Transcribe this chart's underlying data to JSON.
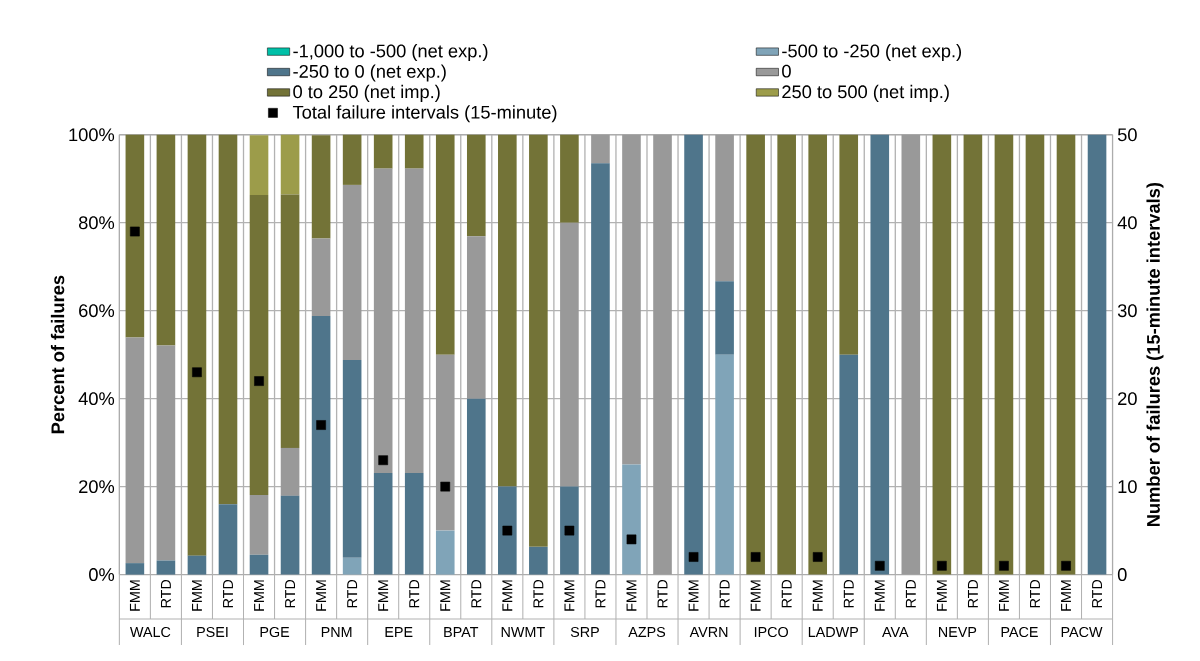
{
  "chart_data": {
    "type": "bar",
    "stacked": true,
    "grid": true,
    "legend": "top",
    "ylabel": "Percent of failures",
    "y2label": "Number of failures (15-minute intervals)",
    "categories": [
      "FMM",
      "RTD",
      "FMM",
      "RTD",
      "FMM",
      "RTD",
      "FMM",
      "RTD",
      "FMM",
      "RTD",
      "FMM",
      "RTD",
      "FMM",
      "RTD",
      "FMM",
      "RTD",
      "FMM",
      "RTD",
      "FMM",
      "RTD",
      "FMM",
      "RTD",
      "FMM",
      "RTD",
      "FMM",
      "RTD",
      "FMM",
      "RTD",
      "FMM",
      "RTD",
      "FMM",
      "RTD"
    ],
    "annotations": [
      "WALC",
      "PSEI",
      "PGE",
      "PNM",
      "EPE",
      "BPAT",
      "NWMT",
      "SRP",
      "AZPS",
      "AVRN",
      "IPCO",
      "LADWP",
      "AVA",
      "NEVP",
      "PACE",
      "PACW"
    ],
    "ylim": [
      0,
      100
    ],
    "yticks": [
      {
        "value": 0,
        "label": "0%"
      },
      {
        "value": 20,
        "label": "20%"
      },
      {
        "value": 40,
        "label": "40%"
      },
      {
        "value": 60,
        "label": "60%"
      },
      {
        "value": 80,
        "label": "80%"
      },
      {
        "value": 100,
        "label": "100%"
      }
    ],
    "y2lim": [
      0,
      50
    ],
    "y2ticks": [
      0,
      10,
      20,
      30,
      40,
      50
    ],
    "series": [
      {
        "name": "-1,000 to -500 (net exp.)",
        "color": "#00c0a8",
        "values": [
          0,
          0,
          0,
          0,
          0,
          0,
          0,
          0,
          0,
          0,
          0,
          0,
          0,
          0,
          0,
          0,
          0,
          0,
          0,
          0,
          0,
          0,
          0,
          0,
          0,
          0,
          0,
          0,
          0,
          0,
          0,
          0
        ]
      },
      {
        "name": "-500 to -250 (net exp.)",
        "color": "#80a4b8",
        "values": [
          0,
          0,
          0,
          0,
          0,
          0,
          0,
          3.8,
          0,
          0,
          10,
          0,
          0,
          0,
          0,
          0,
          25,
          0,
          0,
          50,
          0,
          0,
          0,
          0,
          0,
          0,
          0,
          0,
          0,
          0,
          0,
          0
        ]
      },
      {
        "name": "-250 to 0 (net exp.)",
        "color": "#4f758b",
        "values": [
          2.6,
          3.2,
          4.3,
          16,
          4.5,
          17.9,
          58.8,
          45,
          23.1,
          23.1,
          0,
          40,
          20,
          6.3,
          20,
          93.5,
          0,
          0,
          100,
          16.7,
          0,
          0,
          0,
          50,
          100,
          0,
          0,
          0,
          0,
          0,
          0,
          100
        ]
      },
      {
        "name": "0",
        "color": "#999999",
        "values": [
          51.3,
          48.9,
          0,
          0,
          13.6,
          10.9,
          17.6,
          39.8,
          69.2,
          69.2,
          40,
          36.9,
          0,
          0,
          60,
          6.5,
          75,
          100,
          0,
          33.3,
          0,
          0,
          0,
          0,
          0,
          100,
          0,
          0,
          0,
          0,
          0,
          0
        ]
      },
      {
        "name": "0 to 250 (net imp.)",
        "color": "#737337",
        "values": [
          46.1,
          47.9,
          95.7,
          84,
          68.2,
          57.6,
          23.5,
          11.4,
          7.7,
          7.7,
          50,
          23.1,
          80,
          93.7,
          20,
          0,
          0,
          0,
          0,
          0,
          100,
          100,
          100,
          50,
          0,
          0,
          100,
          100,
          100,
          100,
          100,
          0
        ]
      },
      {
        "name": "250 to 500 (net imp.)",
        "color": "#9c9c4a",
        "values": [
          0,
          0,
          0,
          0,
          13.6,
          13.6,
          0,
          0,
          0,
          0,
          0,
          0,
          0,
          0,
          0,
          0,
          0,
          0,
          0,
          0,
          0,
          0,
          0,
          0,
          0,
          0,
          0,
          0,
          0,
          0,
          0,
          0
        ]
      },
      {
        "name": "Total failure intervals (15-minute)",
        "type": "scatter",
        "axis": "y2",
        "marker": "square",
        "color": "#000000",
        "values": [
          39,
          null,
          23,
          null,
          22,
          null,
          17,
          null,
          13,
          null,
          10,
          null,
          5,
          null,
          5,
          null,
          4,
          null,
          2,
          null,
          2,
          null,
          2,
          null,
          1,
          null,
          1,
          null,
          1,
          null,
          1,
          null
        ]
      }
    ]
  }
}
